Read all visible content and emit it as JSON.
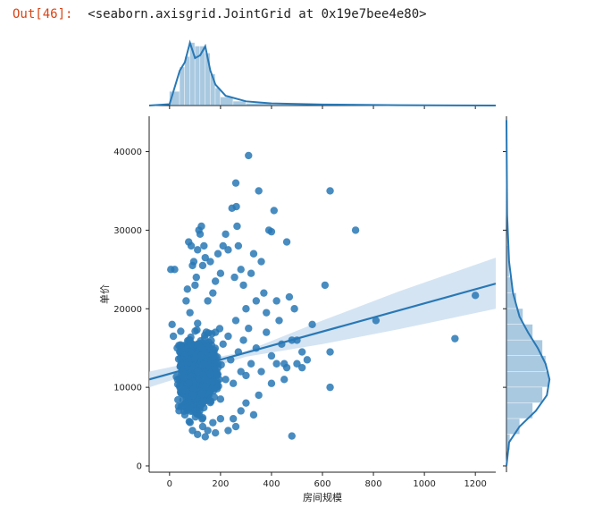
{
  "output": {
    "prompt": "Out[46]:",
    "repr": "<seaborn.axisgrid.JointGrid at 0x19e7bee4e80>"
  },
  "colors": {
    "primary": "#2878b5",
    "band": "#c6dbef",
    "prompt": "#d84315"
  },
  "chart_data": {
    "type": "scatter",
    "title": "",
    "xlabel": "房间规模",
    "ylabel": "单价",
    "xlim": [
      -80,
      1280
    ],
    "ylim": [
      -800,
      44500
    ],
    "xticks": [
      0,
      200,
      400,
      600,
      800,
      1000,
      1200
    ],
    "yticks": [
      0,
      10000,
      20000,
      30000,
      40000
    ],
    "series": [
      {
        "kind": "scatter",
        "points": [
          [
            5,
            25000
          ],
          [
            10,
            18000
          ],
          [
            15,
            16500
          ],
          [
            20,
            25000
          ],
          [
            30,
            15000
          ],
          [
            40,
            14500
          ],
          [
            45,
            13000
          ],
          [
            50,
            12000
          ],
          [
            55,
            11500
          ],
          [
            60,
            14000
          ],
          [
            65,
            21000
          ],
          [
            70,
            22500
          ],
          [
            75,
            28500
          ],
          [
            80,
            19500
          ],
          [
            85,
            28000
          ],
          [
            90,
            25500
          ],
          [
            95,
            26000
          ],
          [
            100,
            23000
          ],
          [
            105,
            24000
          ],
          [
            110,
            27500
          ],
          [
            115,
            30000
          ],
          [
            120,
            29500
          ],
          [
            125,
            30500
          ],
          [
            130,
            25500
          ],
          [
            135,
            28000
          ],
          [
            140,
            26500
          ],
          [
            150,
            21000
          ],
          [
            160,
            26000
          ],
          [
            170,
            22000
          ],
          [
            180,
            23500
          ],
          [
            190,
            27000
          ],
          [
            200,
            24500
          ],
          [
            210,
            28000
          ],
          [
            220,
            29500
          ],
          [
            230,
            27500
          ],
          [
            245,
            32800
          ],
          [
            255,
            24000
          ],
          [
            260,
            36000
          ],
          [
            262,
            33000
          ],
          [
            265,
            30500
          ],
          [
            270,
            28000
          ],
          [
            280,
            25000
          ],
          [
            290,
            23000
          ],
          [
            300,
            20000
          ],
          [
            310,
            39500
          ],
          [
            320,
            24500
          ],
          [
            330,
            27000
          ],
          [
            340,
            21000
          ],
          [
            350,
            35000
          ],
          [
            360,
            26000
          ],
          [
            370,
            22000
          ],
          [
            380,
            19500
          ],
          [
            390,
            30000
          ],
          [
            400,
            29800
          ],
          [
            410,
            32500
          ],
          [
            420,
            21000
          ],
          [
            430,
            18500
          ],
          [
            450,
            13000
          ],
          [
            460,
            28500
          ],
          [
            470,
            21500
          ],
          [
            480,
            3800
          ],
          [
            490,
            20000
          ],
          [
            500,
            16000
          ],
          [
            520,
            14500
          ],
          [
            540,
            13500
          ],
          [
            560,
            18000
          ],
          [
            610,
            23000
          ],
          [
            630,
            35000
          ],
          [
            630,
            14500
          ],
          [
            630,
            10000
          ],
          [
            730,
            30000
          ],
          [
            810,
            18500
          ],
          [
            1120,
            16200
          ],
          [
            1200,
            21700
          ],
          [
            80,
            16000
          ],
          [
            90,
            9000
          ],
          [
            100,
            7000
          ],
          [
            110,
            12000
          ],
          [
            120,
            15000
          ],
          [
            130,
            8000
          ],
          [
            140,
            11000
          ],
          [
            150,
            13000
          ],
          [
            160,
            9500
          ],
          [
            170,
            14000
          ],
          [
            180,
            17000
          ],
          [
            190,
            12500
          ],
          [
            200,
            8500
          ],
          [
            210,
            15500
          ],
          [
            220,
            11000
          ],
          [
            230,
            16500
          ],
          [
            240,
            13500
          ],
          [
            250,
            10500
          ],
          [
            260,
            18500
          ],
          [
            270,
            14500
          ],
          [
            280,
            12000
          ],
          [
            290,
            16000
          ],
          [
            300,
            11500
          ],
          [
            310,
            17500
          ],
          [
            320,
            13000
          ],
          [
            340,
            15000
          ],
          [
            360,
            12000
          ],
          [
            380,
            17000
          ],
          [
            400,
            14000
          ],
          [
            420,
            13000
          ],
          [
            440,
            15500
          ],
          [
            460,
            12500
          ],
          [
            480,
            16000
          ],
          [
            500,
            13000
          ],
          [
            520,
            12500
          ],
          [
            90,
            4500
          ],
          [
            110,
            4000
          ],
          [
            130,
            5000
          ],
          [
            150,
            4500
          ],
          [
            170,
            5500
          ],
          [
            200,
            6000
          ],
          [
            230,
            4500
          ],
          [
            260,
            5000
          ],
          [
            140,
            3700
          ],
          [
            180,
            4200
          ],
          [
            60,
            6500
          ],
          [
            70,
            7500
          ],
          [
            300,
            8000
          ],
          [
            350,
            9000
          ],
          [
            400,
            10500
          ],
          [
            450,
            11000
          ],
          [
            330,
            6500
          ],
          [
            280,
            7000
          ],
          [
            250,
            6000
          ]
        ]
      },
      {
        "kind": "regression",
        "line": [
          [
            -80,
            11000
          ],
          [
            1280,
            23200
          ]
        ],
        "ci_upper": [
          [
            -80,
            12000
          ],
          [
            300,
            14600
          ],
          [
            600,
            18500
          ],
          [
            900,
            22200
          ],
          [
            1280,
            26500
          ]
        ],
        "ci_lower": [
          [
            -80,
            10000
          ],
          [
            300,
            13900
          ],
          [
            600,
            15500
          ],
          [
            900,
            17400
          ],
          [
            1280,
            20000
          ]
        ]
      }
    ],
    "marginal_x": {
      "bins": [
        0,
        40,
        60,
        80,
        100,
        120,
        140,
        160,
        180,
        200,
        250,
        300,
        400,
        600,
        1280
      ],
      "counts": [
        0.2,
        0.55,
        0.7,
        0.9,
        0.85,
        0.85,
        0.75,
        0.45,
        0.25,
        0.12,
        0.06,
        0.03,
        0.01,
        0.005
      ],
      "kde": [
        [
          -80,
          0
        ],
        [
          0,
          0.02
        ],
        [
          40,
          0.5
        ],
        [
          60,
          0.62
        ],
        [
          80,
          0.9
        ],
        [
          100,
          0.68
        ],
        [
          120,
          0.72
        ],
        [
          140,
          0.85
        ],
        [
          160,
          0.5
        ],
        [
          180,
          0.3
        ],
        [
          220,
          0.14
        ],
        [
          300,
          0.06
        ],
        [
          400,
          0.03
        ],
        [
          600,
          0.015
        ],
        [
          900,
          0.005
        ],
        [
          1280,
          0
        ]
      ]
    },
    "marginal_y": {
      "bins": [
        2000,
        4000,
        6000,
        8000,
        10000,
        12000,
        14000,
        16000,
        18000,
        20000,
        22000,
        24000,
        28000,
        44000
      ],
      "counts": [
        0.05,
        0.2,
        0.4,
        0.55,
        0.65,
        0.6,
        0.55,
        0.4,
        0.25,
        0.15,
        0.08,
        0.04,
        0.01
      ],
      "kde": [
        [
          0,
          0
        ],
        [
          3000,
          0.04
        ],
        [
          5000,
          0.2
        ],
        [
          7000,
          0.45
        ],
        [
          9000,
          0.62
        ],
        [
          11000,
          0.66
        ],
        [
          13000,
          0.6
        ],
        [
          15000,
          0.48
        ],
        [
          17000,
          0.33
        ],
        [
          19000,
          0.2
        ],
        [
          22000,
          0.1
        ],
        [
          26000,
          0.04
        ],
        [
          32000,
          0.01
        ],
        [
          44000,
          0
        ]
      ]
    }
  }
}
